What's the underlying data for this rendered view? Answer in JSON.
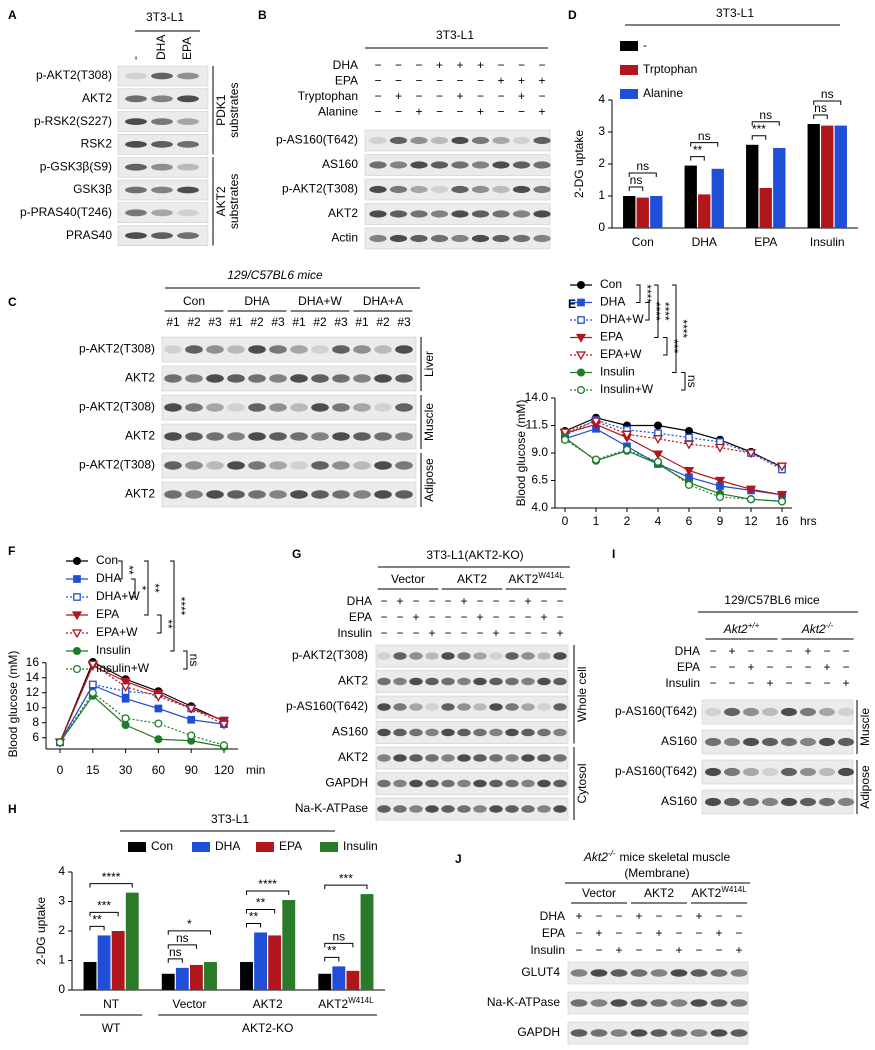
{
  "panel_labels": [
    "A",
    "B",
    "C",
    "D",
    "E",
    "F",
    "G",
    "H",
    "I",
    "J"
  ],
  "blot_A": {
    "title": "3T3-L1",
    "lanes": [
      "-",
      "DHA",
      "EPA"
    ],
    "sections": [
      {
        "label": [
          "PDK1",
          "substrates"
        ],
        "rows": [
          "p-AKT2(T308)",
          "AKT2",
          "p-RSK2(S227)",
          "RSK2"
        ]
      },
      {
        "label": [
          "AKT2",
          "substrates"
        ],
        "rows": [
          "p-GSK3β(S9)",
          "GSK3β",
          "p-PRAS40(T246)",
          "PRAS40"
        ]
      }
    ]
  },
  "blot_B": {
    "title": "3T3-L1",
    "treatments": [
      {
        "name": "DHA",
        "signs": [
          "−",
          "−",
          "−",
          "+",
          "+",
          "+",
          "−",
          "−",
          "−"
        ]
      },
      {
        "name": "EPA",
        "signs": [
          "−",
          "−",
          "−",
          "−",
          "−",
          "−",
          "+",
          "+",
          "+"
        ]
      },
      {
        "name": "Tryptophan",
        "signs": [
          "−",
          "+",
          "−",
          "−",
          "+",
          "−",
          "−",
          "+",
          "−"
        ]
      },
      {
        "name": "Alanine",
        "signs": [
          "−",
          "−",
          "+",
          "−",
          "−",
          "+",
          "−",
          "−",
          "+"
        ]
      }
    ],
    "rows": [
      "p-AS160(T642)",
      "AS160",
      "p-AKT2(T308)",
      "AKT2",
      "Actin"
    ]
  },
  "blot_C": {
    "title": "129/C57BL6 mice",
    "groups": [
      {
        "name": "Con",
        "lanes": [
          "#1",
          "#2",
          "#3"
        ]
      },
      {
        "name": "DHA",
        "lanes": [
          "#1",
          "#2",
          "#3"
        ]
      },
      {
        "name": "DHA+W",
        "lanes": [
          "#1",
          "#2",
          "#3"
        ]
      },
      {
        "name": "DHA+A",
        "lanes": [
          "#1",
          "#2",
          "#3"
        ]
      }
    ],
    "sections": [
      {
        "label": [
          "Liver"
        ],
        "rows": [
          "p-AKT2(T308)",
          "AKT2"
        ]
      },
      {
        "label": [
          "Muscle"
        ],
        "rows": [
          "p-AKT2(T308)",
          "AKT2"
        ]
      },
      {
        "label": [
          "Adipose"
        ],
        "rows": [
          "p-AKT2(T308)",
          "AKT2"
        ]
      }
    ]
  },
  "blot_G": {
    "title": "3T3-L1(AKT2-KO)",
    "groups": [
      {
        "name": "Vector"
      },
      {
        "name": "AKT2"
      },
      {
        "name": "AKT2",
        "sup": "W414L"
      }
    ],
    "treatments": [
      {
        "name": "DHA",
        "signs": [
          "−",
          "+",
          "−",
          "−",
          "−",
          "+",
          "−",
          "−",
          "−",
          "+",
          "−",
          "−"
        ]
      },
      {
        "name": "EPA",
        "signs": [
          "−",
          "−",
          "+",
          "−",
          "−",
          "−",
          "+",
          "−",
          "−",
          "−",
          "+",
          "−"
        ]
      },
      {
        "name": "Insulin",
        "signs": [
          "−",
          "−",
          "−",
          "+",
          "−",
          "−",
          "−",
          "+",
          "−",
          "−",
          "−",
          "+"
        ]
      }
    ],
    "sections": [
      {
        "label": [
          "Whole cell"
        ],
        "rows": [
          "p-AKT2(T308)",
          "AKT2",
          "p-AS160(T642)",
          "AS160"
        ]
      },
      {
        "label": [
          "Cytosol"
        ],
        "rows": [
          "AKT2",
          "GAPDH",
          "Na-K-ATPase"
        ]
      }
    ]
  },
  "blot_I": {
    "title": "129/C57BL6 mice",
    "groups": [
      {
        "name": "Akt2",
        "sup": "+/+"
      },
      {
        "name": "Akt2",
        "sup": "-/-"
      }
    ],
    "treatments": [
      {
        "name": "DHA",
        "signs": [
          "−",
          "+",
          "−",
          "−",
          "−",
          "+",
          "−",
          "−"
        ]
      },
      {
        "name": "EPA",
        "signs": [
          "−",
          "−",
          "+",
          "−",
          "−",
          "−",
          "+",
          "−"
        ]
      },
      {
        "name": "Insulin",
        "signs": [
          "−",
          "−",
          "−",
          "+",
          "−",
          "−",
          "−",
          "+"
        ]
      }
    ],
    "sections": [
      {
        "label": [
          "Muscle"
        ],
        "rows": [
          "p-AS160(T642)",
          "AS160"
        ]
      },
      {
        "label": [
          "Adipose"
        ],
        "rows": [
          "p-AS160(T642)",
          "AS160"
        ]
      }
    ]
  },
  "blot_J": {
    "title": {
      "name": "Akt2",
      "sup": "-/-",
      "rest": "mice skeletal muscle"
    },
    "subtitle": "(Membrane)",
    "groups": [
      {
        "name": "Vector"
      },
      {
        "name": "AKT2"
      },
      {
        "name": "AKT2",
        "sup": "W414L"
      }
    ],
    "treatments": [
      {
        "name": "DHA",
        "signs": [
          "+",
          "−",
          "−",
          "+",
          "−",
          "−",
          "+",
          "−",
          "−"
        ]
      },
      {
        "name": "EPA",
        "signs": [
          "−",
          "+",
          "−",
          "−",
          "+",
          "−",
          "−",
          "+",
          "−"
        ]
      },
      {
        "name": "Insulin",
        "signs": [
          "−",
          "−",
          "+",
          "−",
          "−",
          "+",
          "−",
          "−",
          "+"
        ]
      }
    ],
    "rows": [
      "GLUT4",
      "Na-K-ATPase",
      "GAPDH"
    ]
  },
  "chart_data": [
    {
      "type": "bar",
      "title": "3T3-L1",
      "ylabel": "2-DG uptake",
      "categories": [
        "Con",
        "DHA",
        "EPA",
        "Insulin"
      ],
      "series": [
        {
          "name": "-",
          "color": "#000000",
          "values": [
            1.0,
            1.95,
            2.6,
            3.25
          ]
        },
        {
          "name": "Trptophan",
          "color": "#b0161c",
          "values": [
            0.95,
            1.05,
            1.25,
            3.2
          ]
        },
        {
          "name": "Alanine",
          "color": "#1f4fd8",
          "values": [
            1.0,
            1.85,
            2.5,
            3.2
          ]
        }
      ],
      "ylim": [
        0,
        4
      ],
      "yticks": [
        0,
        1,
        2,
        3,
        4
      ],
      "annotations": [
        {
          "text": "ns",
          "category": 0,
          "pair": [
            0,
            1
          ]
        },
        {
          "text": "ns",
          "category": 0,
          "pair": [
            0,
            2
          ]
        },
        {
          "text": "**",
          "category": 1,
          "pair": [
            0,
            1
          ]
        },
        {
          "text": "ns",
          "category": 1,
          "pair": [
            0,
            2
          ]
        },
        {
          "text": "***",
          "category": 2,
          "pair": [
            0,
            1
          ]
        },
        {
          "text": "ns",
          "category": 2,
          "pair": [
            0,
            2
          ]
        },
        {
          "text": "ns",
          "category": 3,
          "pair": [
            0,
            1
          ]
        },
        {
          "text": "ns",
          "category": 3,
          "pair": [
            0,
            2
          ]
        }
      ]
    },
    {
      "type": "line",
      "ylabel": "Blood glucose (mM)",
      "xlabel": "hrs",
      "categories": [
        "0",
        "1",
        "2",
        "4",
        "6",
        "9",
        "12",
        "16"
      ],
      "series": [
        {
          "name": "Con",
          "color": "#000000",
          "marker": "circle",
          "filled": true,
          "dashed": false,
          "values": [
            11.0,
            12.2,
            11.5,
            11.5,
            11.0,
            10.2,
            9.1,
            7.7
          ]
        },
        {
          "name": "DHA",
          "color": "#1f4fd8",
          "marker": "square",
          "filled": true,
          "dashed": false,
          "values": [
            10.3,
            11.2,
            9.6,
            8.0,
            6.8,
            6.0,
            5.6,
            5.2
          ]
        },
        {
          "name": "DHA+W",
          "color": "#1f4fd8",
          "marker": "square",
          "filled": false,
          "dashed": true,
          "values": [
            10.6,
            12.0,
            11.1,
            10.8,
            10.4,
            10.0,
            9.0,
            7.5
          ]
        },
        {
          "name": "EPA",
          "color": "#b0161c",
          "marker": "triangle",
          "filled": true,
          "dashed": false,
          "values": [
            10.8,
            11.6,
            10.4,
            8.9,
            7.4,
            6.5,
            5.7,
            5.2
          ]
        },
        {
          "name": "EPA+W",
          "color": "#b0161c",
          "marker": "triangle",
          "filled": false,
          "dashed": true,
          "values": [
            10.9,
            11.9,
            10.7,
            10.3,
            9.8,
            9.5,
            9.0,
            7.8
          ]
        },
        {
          "name": "Insulin",
          "color": "#1e7b2a",
          "marker": "circle",
          "filled": true,
          "dashed": false,
          "values": [
            10.4,
            8.3,
            9.2,
            8.0,
            6.3,
            5.3,
            4.8,
            4.6
          ]
        },
        {
          "name": "Insulin+W",
          "color": "#1e7b2a",
          "marker": "circle",
          "filled": false,
          "dashed": true,
          "values": [
            10.2,
            8.4,
            9.3,
            8.2,
            6.1,
            5.0,
            4.8,
            4.6
          ]
        }
      ],
      "ylim": [
        4,
        14
      ],
      "yticks": [
        {
          "value": 4,
          "label": "4.0"
        },
        6.5,
        {
          "value": 9,
          "label": "9.0"
        },
        11.5,
        {
          "value": 14,
          "label": "14.0"
        }
      ],
      "annotations": [
        {
          "text": "****",
          "pair": [
            0,
            1
          ]
        },
        {
          "text": "****",
          "pair": [
            1,
            2
          ]
        },
        {
          "text": "****",
          "pair": [
            0,
            3
          ]
        },
        {
          "text": "***",
          "pair": [
            3,
            4
          ]
        },
        {
          "text": "****",
          "pair": [
            0,
            5
          ]
        },
        {
          "text": "ns",
          "pair": [
            5,
            6
          ]
        }
      ]
    },
    {
      "type": "line",
      "ylabel": "Blood glucose (mM)",
      "xlabel": "min",
      "categories": [
        "0",
        "15",
        "30",
        "60",
        "90",
        "120"
      ],
      "series": [
        {
          "name": "Con",
          "color": "#000000",
          "marker": "circle",
          "filled": true,
          "dashed": false,
          "values": [
            5.4,
            16.1,
            13.8,
            12.2,
            10.2,
            8.2
          ]
        },
        {
          "name": "DHA",
          "color": "#1f4fd8",
          "marker": "square",
          "filled": true,
          "dashed": false,
          "values": [
            5.4,
            13.0,
            11.2,
            9.9,
            8.4,
            7.8
          ]
        },
        {
          "name": "DHA+W",
          "color": "#1f4fd8",
          "marker": "square",
          "filled": false,
          "dashed": true,
          "values": [
            5.4,
            13.1,
            12.2,
            11.8,
            9.9,
            8.3
          ]
        },
        {
          "name": "EPA",
          "color": "#b0161c",
          "marker": "triangle",
          "filled": true,
          "dashed": false,
          "values": [
            5.4,
            15.6,
            13.5,
            11.9,
            9.9,
            8.3
          ]
        },
        {
          "name": "EPA+W",
          "color": "#b0161c",
          "marker": "triangle",
          "filled": false,
          "dashed": true,
          "values": [
            5.4,
            15.8,
            12.8,
            11.5,
            9.9,
            7.8
          ]
        },
        {
          "name": "Insulin",
          "color": "#1e7b2a",
          "marker": "circle",
          "filled": true,
          "dashed": false,
          "values": [
            5.4,
            11.6,
            7.7,
            5.8,
            5.6,
            4.8
          ]
        },
        {
          "name": "Insulin+W",
          "color": "#1e7b2a",
          "marker": "circle",
          "filled": false,
          "dashed": true,
          "values": [
            5.4,
            12.0,
            8.6,
            7.9,
            6.3,
            5.0
          ]
        }
      ],
      "ylim": [
        4.5,
        16.5
      ],
      "yticks": [
        6,
        8,
        10,
        12,
        14,
        16
      ],
      "annotations": [
        {
          "text": "**",
          "pair": [
            0,
            1
          ]
        },
        {
          "text": "*",
          "pair": [
            1,
            2
          ]
        },
        {
          "text": "**",
          "pair": [
            0,
            3
          ]
        },
        {
          "text": "**",
          "pair": [
            3,
            4
          ]
        },
        {
          "text": "****",
          "pair": [
            0,
            5
          ]
        },
        {
          "text": "ns",
          "pair": [
            5,
            6
          ]
        }
      ]
    },
    {
      "type": "bar",
      "title": "3T3-L1",
      "ylabel": "2-DG uptake",
      "categories": [
        "NT",
        "Vector",
        "AKT2",
        "AKT2"
      ],
      "category_superscripts": [
        null,
        null,
        null,
        "W414L"
      ],
      "x_groups": [
        {
          "label": "WT",
          "span": 1
        },
        {
          "label": "AKT2-KO",
          "span": 3
        }
      ],
      "series": [
        {
          "name": "Con",
          "color": "#000000",
          "values": [
            0.95,
            0.55,
            0.95,
            0.55
          ]
        },
        {
          "name": "DHA",
          "color": "#1f4fd8",
          "values": [
            1.85,
            0.75,
            1.95,
            0.8
          ]
        },
        {
          "name": "EPA",
          "color": "#b0161c",
          "values": [
            2.0,
            0.85,
            1.85,
            0.65
          ]
        },
        {
          "name": "Insulin",
          "color": "#2a7a2a",
          "values": [
            3.3,
            0.95,
            3.05,
            3.25
          ]
        }
      ],
      "ylim": [
        0,
        4
      ],
      "yticks": [
        0,
        1,
        2,
        3,
        4
      ],
      "annotations": [
        {
          "text": "**",
          "category": 0,
          "pair": [
            0,
            1
          ]
        },
        {
          "text": "***",
          "category": 0,
          "pair": [
            0,
            2
          ]
        },
        {
          "text": "****",
          "category": 0,
          "pair": [
            0,
            3
          ]
        },
        {
          "text": "ns",
          "category": 1,
          "pair": [
            0,
            1
          ]
        },
        {
          "text": "ns",
          "category": 1,
          "pair": [
            0,
            2
          ]
        },
        {
          "text": "*",
          "category": 1,
          "pair": [
            0,
            3
          ]
        },
        {
          "text": "**",
          "category": 2,
          "pair": [
            0,
            1
          ]
        },
        {
          "text": "**",
          "category": 2,
          "pair": [
            0,
            2
          ]
        },
        {
          "text": "****",
          "category": 2,
          "pair": [
            0,
            3
          ]
        },
        {
          "text": "**",
          "category": 3,
          "pair": [
            0,
            1
          ]
        },
        {
          "text": "ns",
          "category": 3,
          "pair": [
            0,
            2
          ]
        },
        {
          "text": "***",
          "category": 3,
          "pair": [
            0,
            3
          ]
        }
      ]
    }
  ]
}
